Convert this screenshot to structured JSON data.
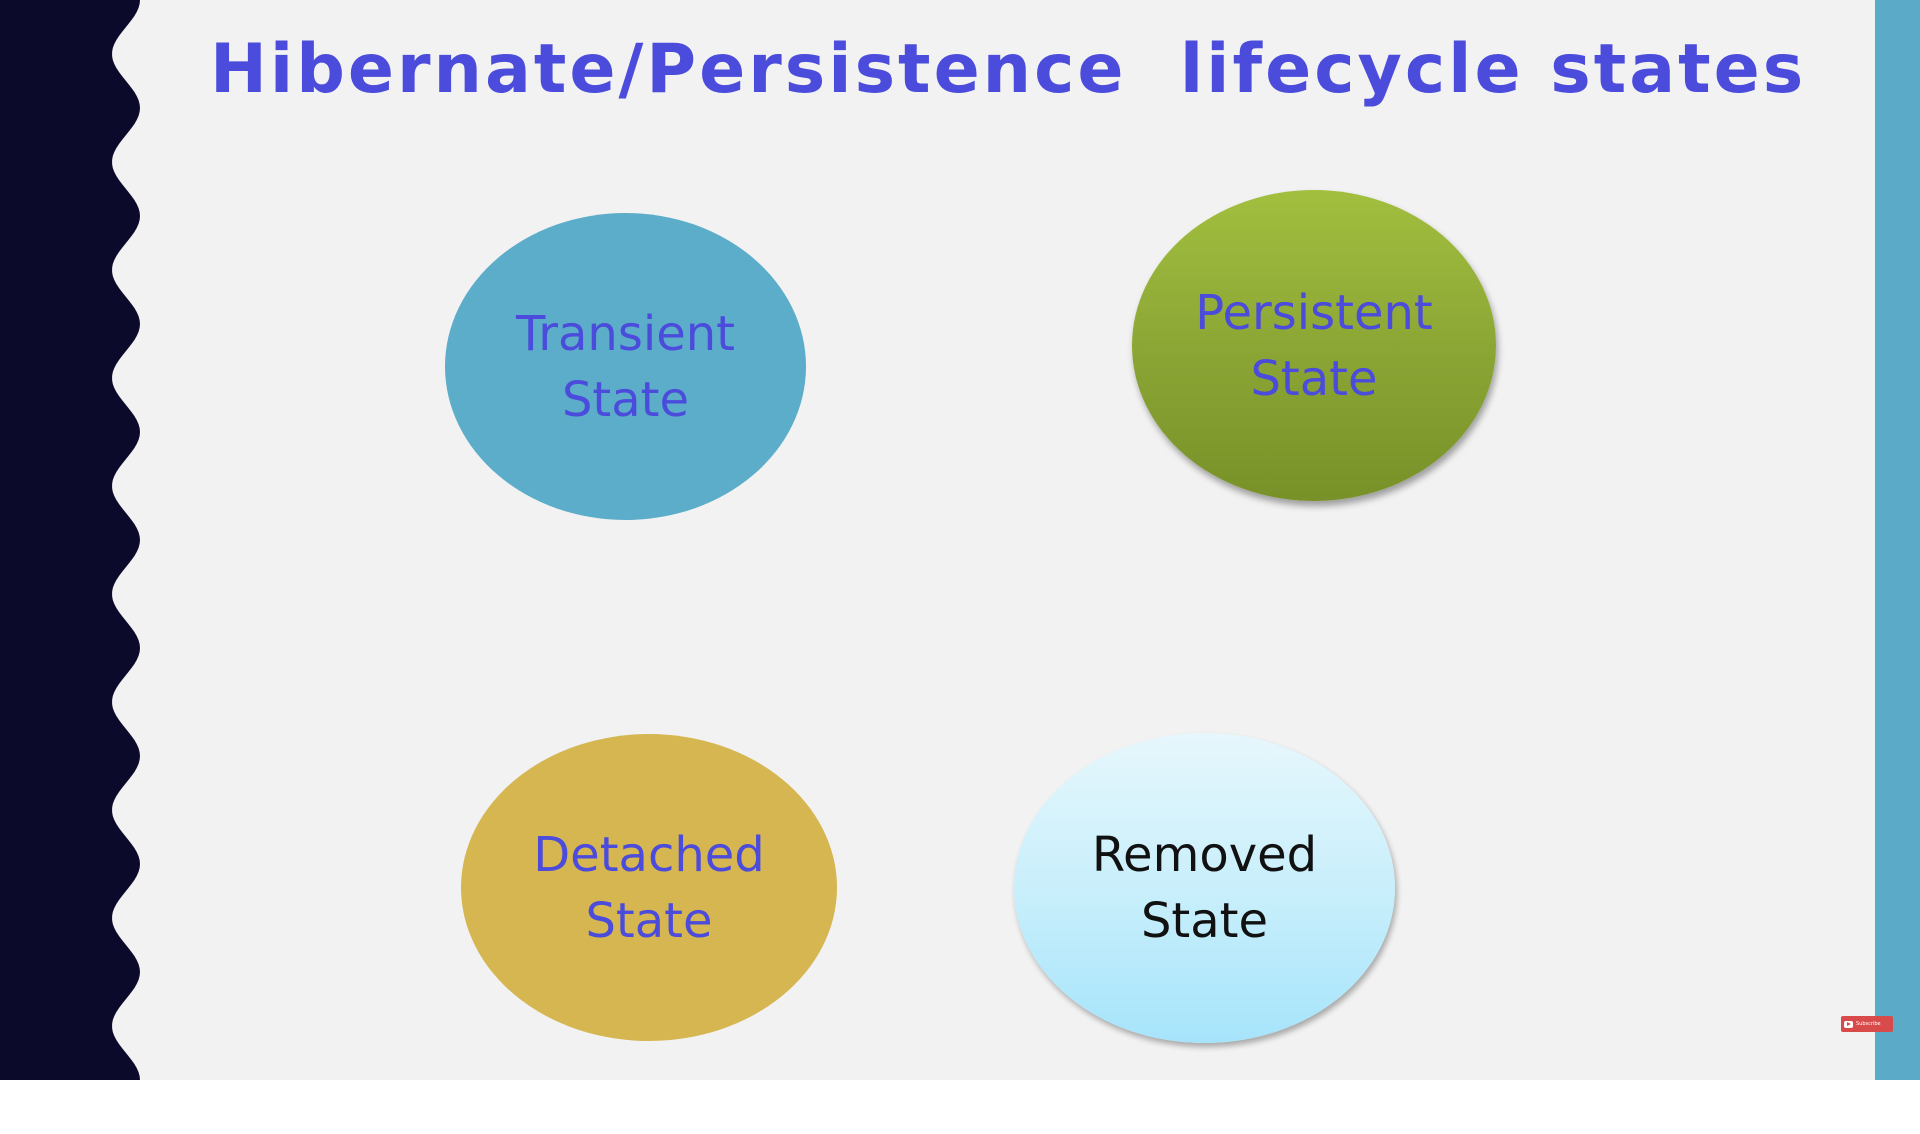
{
  "slide": {
    "title": "Hibernate/Persistence  lifecycle states",
    "states": {
      "transient": "Transient\nState",
      "persistent": "Persistent\nState",
      "detached": "Detached\nState",
      "removed": "Removed\nState"
    },
    "subscribe_label": "Subscribe"
  },
  "colors": {
    "title": "#4b4bdc",
    "left_band": "#0c0a2a",
    "right_band": "#5baac8",
    "transient": "#5cadc9",
    "persistent": "#8aa434",
    "detached": "#d6b651",
    "removed": "#c6eefb",
    "subscribe": "#d94b4b"
  },
  "icons": {
    "subscribe_badge": "play-icon"
  }
}
